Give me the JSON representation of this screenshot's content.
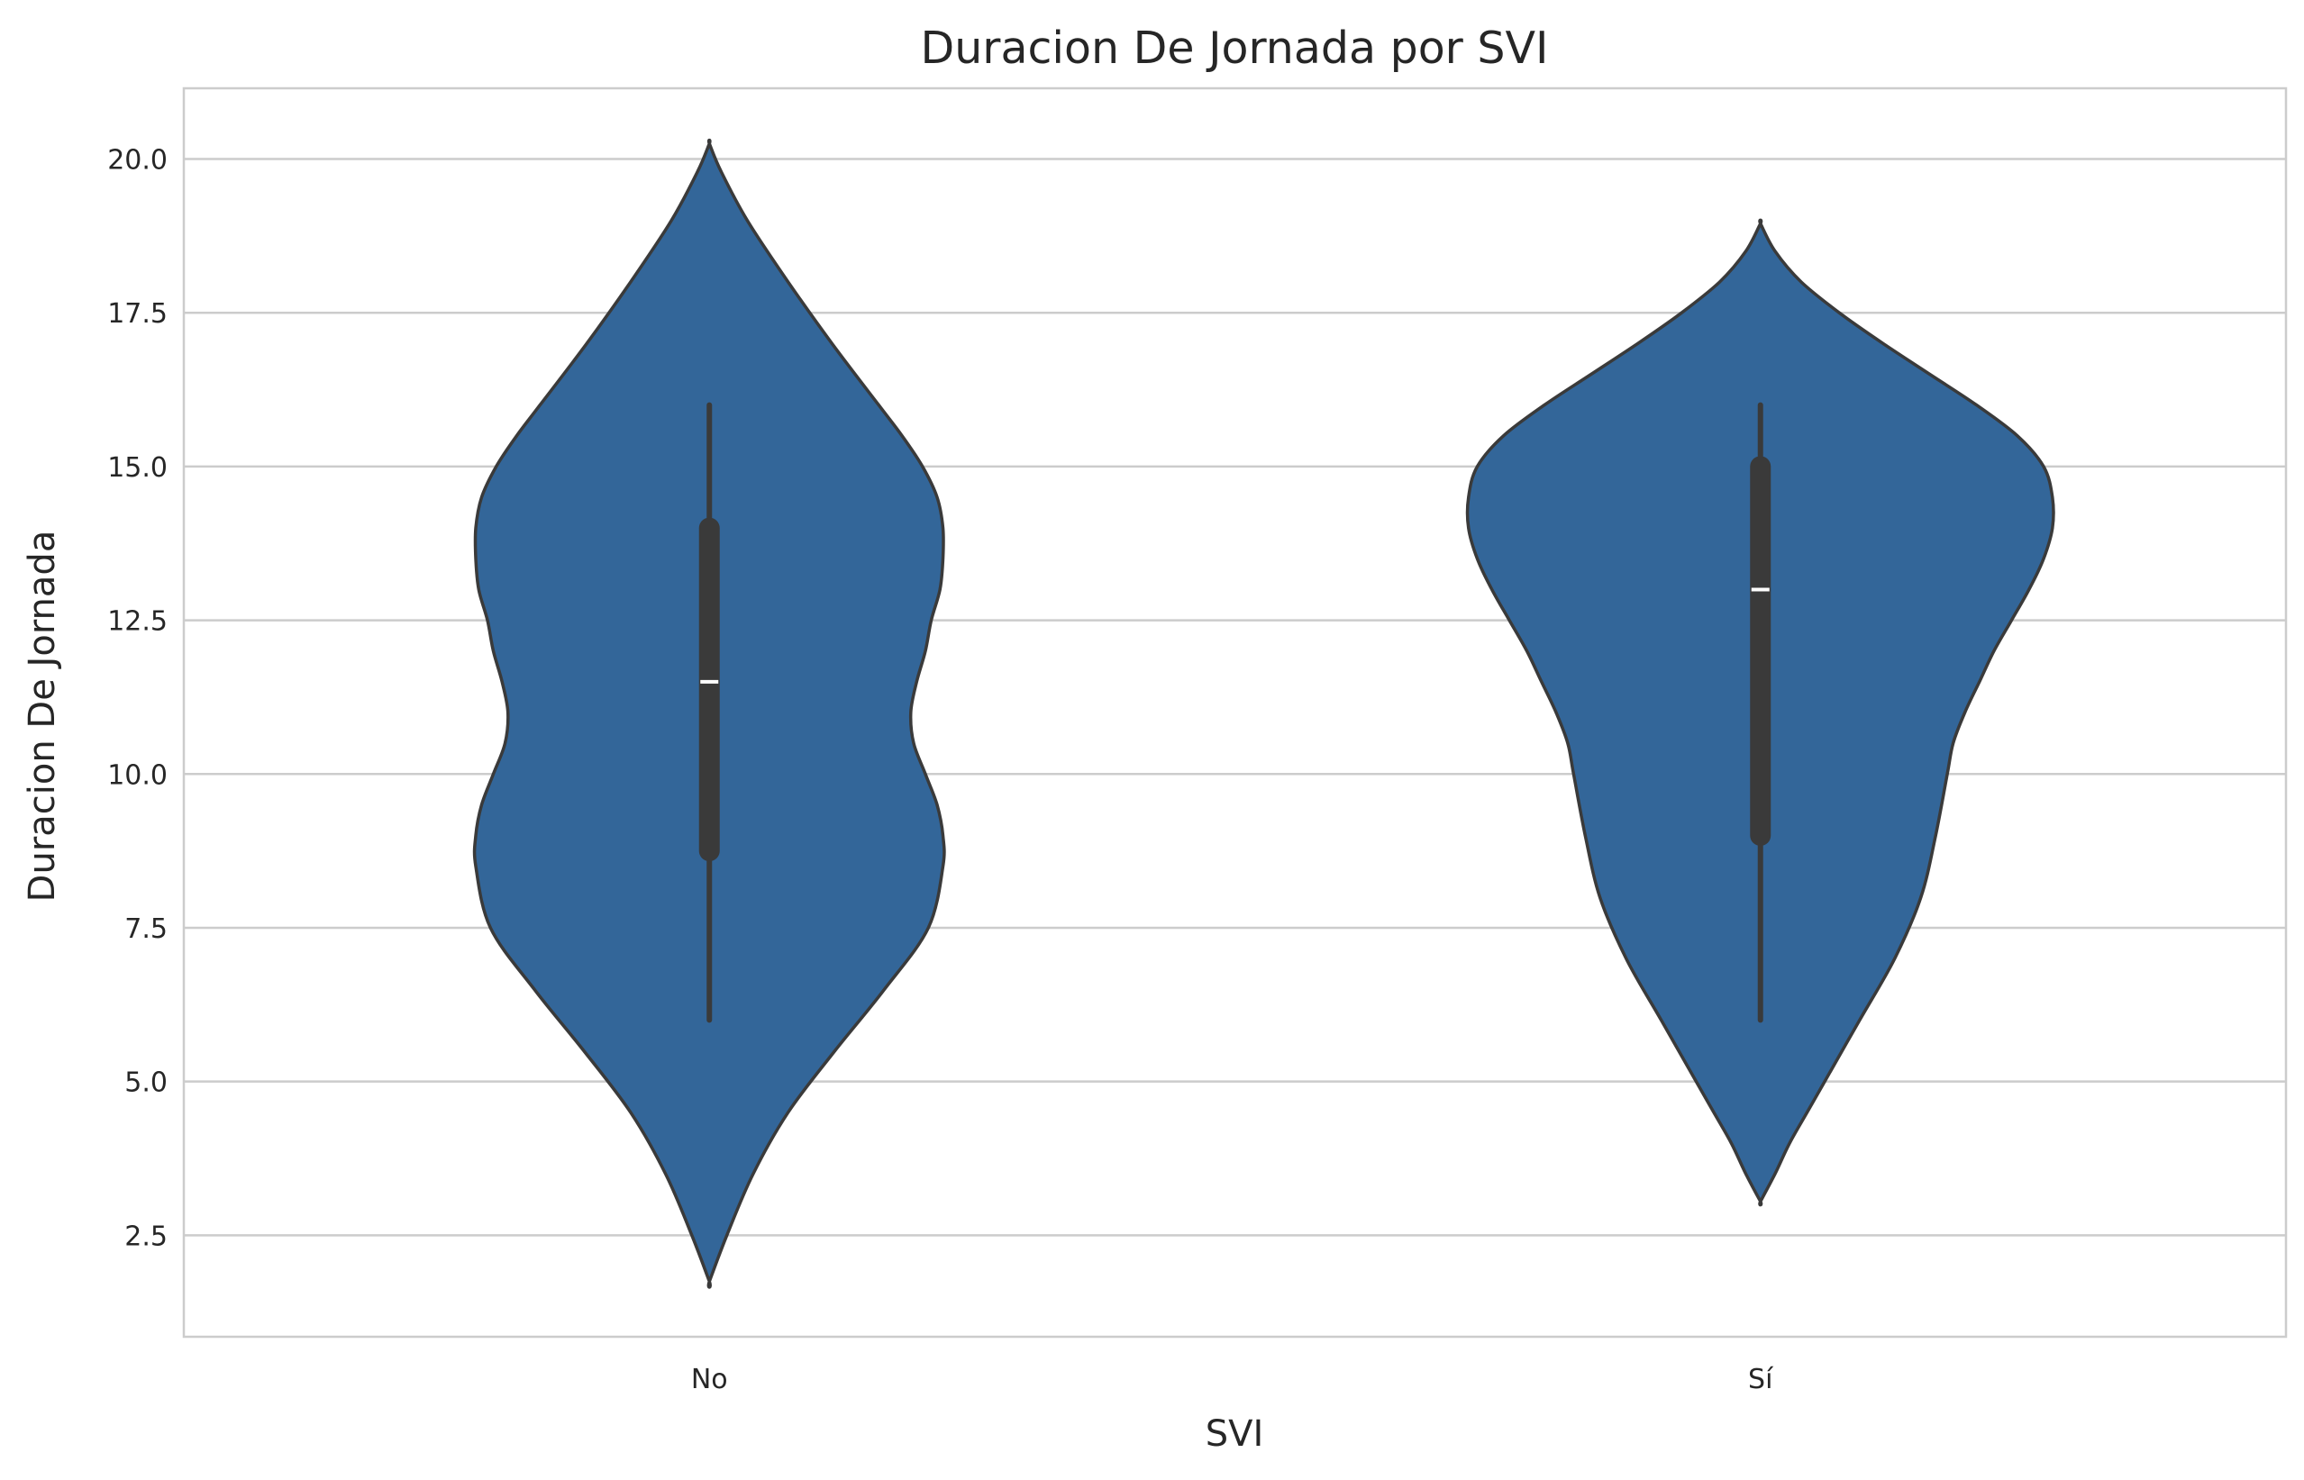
{
  "chart_data": {
    "type": "violin",
    "title": "Duracion De Jornada por SVI",
    "xlabel": "SVI",
    "ylabel": "Duracion De Jornada",
    "categories": [
      "No",
      "Sí"
    ],
    "ylim": [
      0.85,
      21.15
    ],
    "yticks": [
      2.5,
      5.0,
      7.5,
      10.0,
      12.5,
      15.0,
      17.5,
      20.0
    ],
    "ytick_labels": [
      "2.5",
      "5.0",
      "7.5",
      "10.0",
      "12.5",
      "15.0",
      "17.5",
      "20.0"
    ],
    "grid": "horizontal",
    "colors": {
      "fill": "#336699",
      "outline": "#3a3a3a",
      "box": "#3a3a3a",
      "median": "#ffffff",
      "grid": "#cccccc",
      "spine": "#cccccc"
    },
    "violins": [
      {
        "category": "No",
        "y_min": 1.75,
        "y_max": 20.25,
        "min": 6.0,
        "q1": 8.75,
        "median": 11.5,
        "q3": 14.0,
        "max": 16.0,
        "density": [
          [
            1.75,
            0.0
          ],
          [
            2.5,
            0.06
          ],
          [
            3.5,
            0.15
          ],
          [
            4.5,
            0.27
          ],
          [
            5.5,
            0.43
          ],
          [
            6.5,
            0.6
          ],
          [
            7.5,
            0.75
          ],
          [
            8.5,
            0.8
          ],
          [
            9.0,
            0.8
          ],
          [
            9.5,
            0.78
          ],
          [
            10.0,
            0.74
          ],
          [
            10.5,
            0.7
          ],
          [
            11.0,
            0.69
          ],
          [
            11.5,
            0.71
          ],
          [
            12.0,
            0.74
          ],
          [
            12.5,
            0.76
          ],
          [
            13.0,
            0.79
          ],
          [
            13.5,
            0.8
          ],
          [
            14.0,
            0.8
          ],
          [
            14.5,
            0.78
          ],
          [
            15.0,
            0.73
          ],
          [
            15.5,
            0.66
          ],
          [
            16.0,
            0.58
          ],
          [
            17.0,
            0.42
          ],
          [
            18.0,
            0.27
          ],
          [
            19.0,
            0.13
          ],
          [
            19.8,
            0.04
          ],
          [
            20.25,
            0.0
          ]
        ]
      },
      {
        "category": "Sí",
        "y_min": 3.05,
        "y_max": 18.95,
        "min": 6.0,
        "q1": 9.0,
        "median": 13.0,
        "q3": 15.0,
        "max": 16.0,
        "density": [
          [
            3.05,
            0.0
          ],
          [
            3.5,
            0.05
          ],
          [
            4.0,
            0.1
          ],
          [
            4.5,
            0.16
          ],
          [
            5.0,
            0.22
          ],
          [
            6.0,
            0.34
          ],
          [
            7.0,
            0.46
          ],
          [
            8.0,
            0.55
          ],
          [
            9.0,
            0.6
          ],
          [
            10.0,
            0.64
          ],
          [
            10.5,
            0.66
          ],
          [
            11.0,
            0.7
          ],
          [
            11.5,
            0.75
          ],
          [
            12.0,
            0.8
          ],
          [
            12.5,
            0.86
          ],
          [
            13.0,
            0.92
          ],
          [
            13.5,
            0.97
          ],
          [
            14.0,
            1.0
          ],
          [
            14.5,
            1.0
          ],
          [
            15.0,
            0.97
          ],
          [
            15.5,
            0.88
          ],
          [
            16.0,
            0.74
          ],
          [
            16.5,
            0.58
          ],
          [
            17.0,
            0.42
          ],
          [
            17.5,
            0.27
          ],
          [
            18.0,
            0.14
          ],
          [
            18.5,
            0.05
          ],
          [
            18.95,
            0.0
          ]
        ]
      }
    ]
  }
}
